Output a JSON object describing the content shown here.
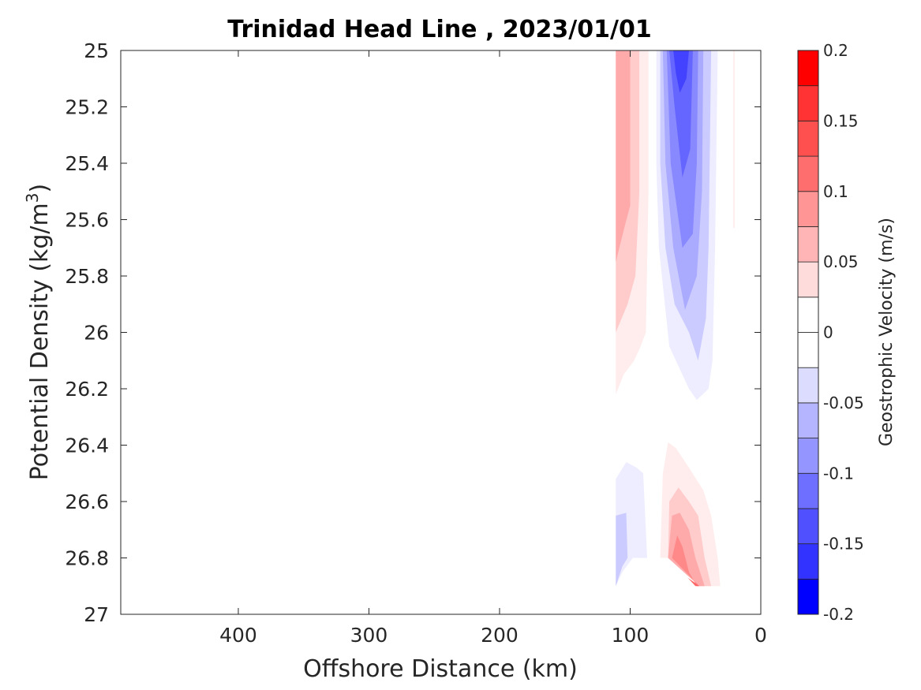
{
  "chart_data": {
    "type": "contour",
    "title": "Trinidad Head Line , 2023/01/01",
    "xlabel": "Offshore Distance (km)",
    "ylabel_text": "Potential Density (kg/m",
    "ylabel_sup": "3",
    "ylabel_close": ")",
    "colorbar_label": "Geostrophic Velocity (m/s)",
    "xlim": [
      490,
      0
    ],
    "x_reversed": true,
    "ylim": [
      25,
      27
    ],
    "y_reversed": true,
    "xticks": [
      400,
      300,
      200,
      100,
      0
    ],
    "xtick_labels": [
      "400",
      "300",
      "200",
      "100",
      "0"
    ],
    "yticks": [
      25,
      25.2,
      25.4,
      25.6,
      25.8,
      26,
      26.2,
      26.4,
      26.6,
      26.8,
      27
    ],
    "ytick_labels": [
      "25",
      "25.2",
      "25.4",
      "25.6",
      "25.8",
      "26",
      "26.2",
      "26.4",
      "26.6",
      "26.8",
      "27"
    ],
    "colorbar": {
      "min": -0.2,
      "max": 0.2,
      "levels": [
        -0.2,
        -0.175,
        -0.15,
        -0.125,
        -0.1,
        -0.075,
        -0.05,
        -0.025,
        0,
        0.025,
        0.05,
        0.075,
        0.1,
        0.125,
        0.15,
        0.175,
        0.2
      ],
      "colors": [
        "#0000ff",
        "#2121ff",
        "#4343ff",
        "#6565ff",
        "#8888ff",
        "#aaaaff",
        "#cbcbff",
        "#ededff",
        "#ffffff",
        "#ffeded",
        "#ffcbcb",
        "#ffaaaa",
        "#ff8888",
        "#ff6565",
        "#ff4343",
        "#ff2121",
        "#ff0000"
      ],
      "band_colors": [
        "#0000ff",
        "#3333ff",
        "#5050ff",
        "#6e6eff",
        "#9595ff",
        "#b5b5ff",
        "#dcdcff",
        "#ffffff",
        "#ffffff",
        "#ffdcdc",
        "#ffb5b5",
        "#ff9595",
        "#ff6e6e",
        "#ff5050",
        "#ff3333",
        "#ff0000"
      ],
      "tick_values": [
        0.2,
        0.15,
        0.1,
        0.05,
        0,
        -0.05,
        -0.1,
        -0.15,
        -0.2
      ],
      "tick_labels": [
        "0.2",
        "0.15",
        "0.1",
        "0.05",
        "0",
        "-0.05",
        "-0.1",
        "-0.15",
        "-0.2"
      ]
    },
    "regions": [
      {
        "name": "northward-jet-outer",
        "level": 0.025,
        "polygon": [
          [
            111,
            25
          ],
          [
            86,
            25
          ],
          [
            86,
            25.5
          ],
          [
            88,
            26.0
          ],
          [
            92,
            26.05
          ],
          [
            97,
            26.1
          ],
          [
            105,
            26.15
          ],
          [
            111,
            26.22
          ]
        ]
      },
      {
        "name": "northward-jet-mid",
        "level": 0.05,
        "polygon": [
          [
            111,
            25
          ],
          [
            93,
            25
          ],
          [
            93,
            25.5
          ],
          [
            96,
            25.8
          ],
          [
            102,
            25.9
          ],
          [
            111,
            26.0
          ]
        ]
      },
      {
        "name": "northward-jet-core",
        "level": 0.075,
        "polygon": [
          [
            111,
            25
          ],
          [
            100,
            25
          ],
          [
            100,
            25.55
          ],
          [
            104,
            25.62
          ],
          [
            111,
            25.75
          ]
        ]
      },
      {
        "name": "southward-jet-outer",
        "level": -0.025,
        "polygon": [
          [
            80,
            25
          ],
          [
            33,
            25
          ],
          [
            35,
            25.7
          ],
          [
            37,
            26.1
          ],
          [
            40,
            26.2
          ],
          [
            49,
            26.24
          ],
          [
            55,
            26.2
          ],
          [
            70,
            26.05
          ],
          [
            78,
            25.7
          ],
          [
            80,
            25.4
          ]
        ]
      },
      {
        "name": "southward-jet-mid",
        "level": -0.05,
        "polygon": [
          [
            77,
            25
          ],
          [
            38,
            25
          ],
          [
            40,
            25.7
          ],
          [
            42,
            25.95
          ],
          [
            48,
            26.1
          ],
          [
            55,
            26.0
          ],
          [
            66,
            25.9
          ],
          [
            73,
            25.7
          ],
          [
            77,
            25.4
          ]
        ]
      },
      {
        "name": "southward-jet-inner",
        "level": -0.075,
        "polygon": [
          [
            75,
            25
          ],
          [
            44,
            25
          ],
          [
            45,
            25.5
          ],
          [
            49,
            25.8
          ],
          [
            58,
            25.92
          ],
          [
            67,
            25.7
          ],
          [
            73,
            25.4
          ]
        ]
      },
      {
        "name": "southward-jet-strong",
        "level": -0.1,
        "polygon": [
          [
            72,
            25
          ],
          [
            48,
            25
          ],
          [
            49,
            25.4
          ],
          [
            52,
            25.65
          ],
          [
            60,
            25.7
          ],
          [
            69,
            25.4
          ]
        ]
      },
      {
        "name": "southward-jet-core",
        "level": -0.125,
        "polygon": [
          [
            70,
            25
          ],
          [
            52,
            25
          ],
          [
            54,
            25.35
          ],
          [
            60,
            25.45
          ],
          [
            66,
            25.2
          ]
        ]
      },
      {
        "name": "southward-jet-peak",
        "level": -0.15,
        "polygon": [
          [
            67,
            25
          ],
          [
            55,
            25
          ],
          [
            57,
            25.1
          ],
          [
            62,
            25.15
          ],
          [
            65,
            25.08
          ]
        ]
      },
      {
        "name": "nearshore-weak-north",
        "level": 0.025,
        "polygon": [
          [
            21,
            25
          ],
          [
            20,
            25
          ],
          [
            20,
            25.63
          ],
          [
            21,
            25.63
          ]
        ]
      },
      {
        "name": "deep-southward-outer",
        "level": -0.025,
        "polygon": [
          [
            111,
            26.52
          ],
          [
            103,
            26.46
          ],
          [
            95,
            26.48
          ],
          [
            90,
            26.5
          ],
          [
            87,
            26.8
          ],
          [
            98,
            26.8
          ],
          [
            106,
            26.85
          ],
          [
            111,
            26.9
          ]
        ]
      },
      {
        "name": "deep-southward-core",
        "level": -0.05,
        "polygon": [
          [
            111,
            26.65
          ],
          [
            103,
            26.64
          ],
          [
            102,
            26.8
          ],
          [
            106,
            26.83
          ],
          [
            111,
            26.9
          ]
        ]
      },
      {
        "name": "deep-northward-outer",
        "level": 0.025,
        "polygon": [
          [
            77,
            26.8
          ],
          [
            75,
            26.5
          ],
          [
            71,
            26.39
          ],
          [
            65,
            26.41
          ],
          [
            55,
            26.48
          ],
          [
            44,
            26.56
          ],
          [
            38,
            26.65
          ],
          [
            33,
            26.8
          ],
          [
            31,
            26.9
          ],
          [
            47,
            26.9
          ],
          [
            58,
            26.8
          ]
        ]
      },
      {
        "name": "deep-northward-mid",
        "level": 0.05,
        "polygon": [
          [
            71,
            26.8
          ],
          [
            70,
            26.6
          ],
          [
            63,
            26.55
          ],
          [
            55,
            26.6
          ],
          [
            48,
            26.65
          ],
          [
            43,
            26.8
          ],
          [
            38,
            26.9
          ],
          [
            47,
            26.9
          ]
        ]
      },
      {
        "name": "deep-northward-inner",
        "level": 0.075,
        "polygon": [
          [
            71,
            26.8
          ],
          [
            68,
            26.65
          ],
          [
            62,
            26.64
          ],
          [
            55,
            26.7
          ],
          [
            50,
            26.8
          ],
          [
            43,
            26.9
          ],
          [
            47,
            26.9
          ]
        ]
      },
      {
        "name": "deep-northward-strong",
        "level": 0.1,
        "polygon": [
          [
            68,
            26.8
          ],
          [
            64,
            26.72
          ],
          [
            60,
            26.76
          ],
          [
            55,
            26.85
          ],
          [
            49,
            26.9
          ],
          [
            47,
            26.9
          ]
        ]
      },
      {
        "name": "deep-northward-core",
        "level": 0.125,
        "polygon": [
          [
            62,
            26.85
          ],
          [
            56,
            26.87
          ],
          [
            50,
            26.9
          ],
          [
            47,
            26.9
          ]
        ]
      }
    ]
  }
}
